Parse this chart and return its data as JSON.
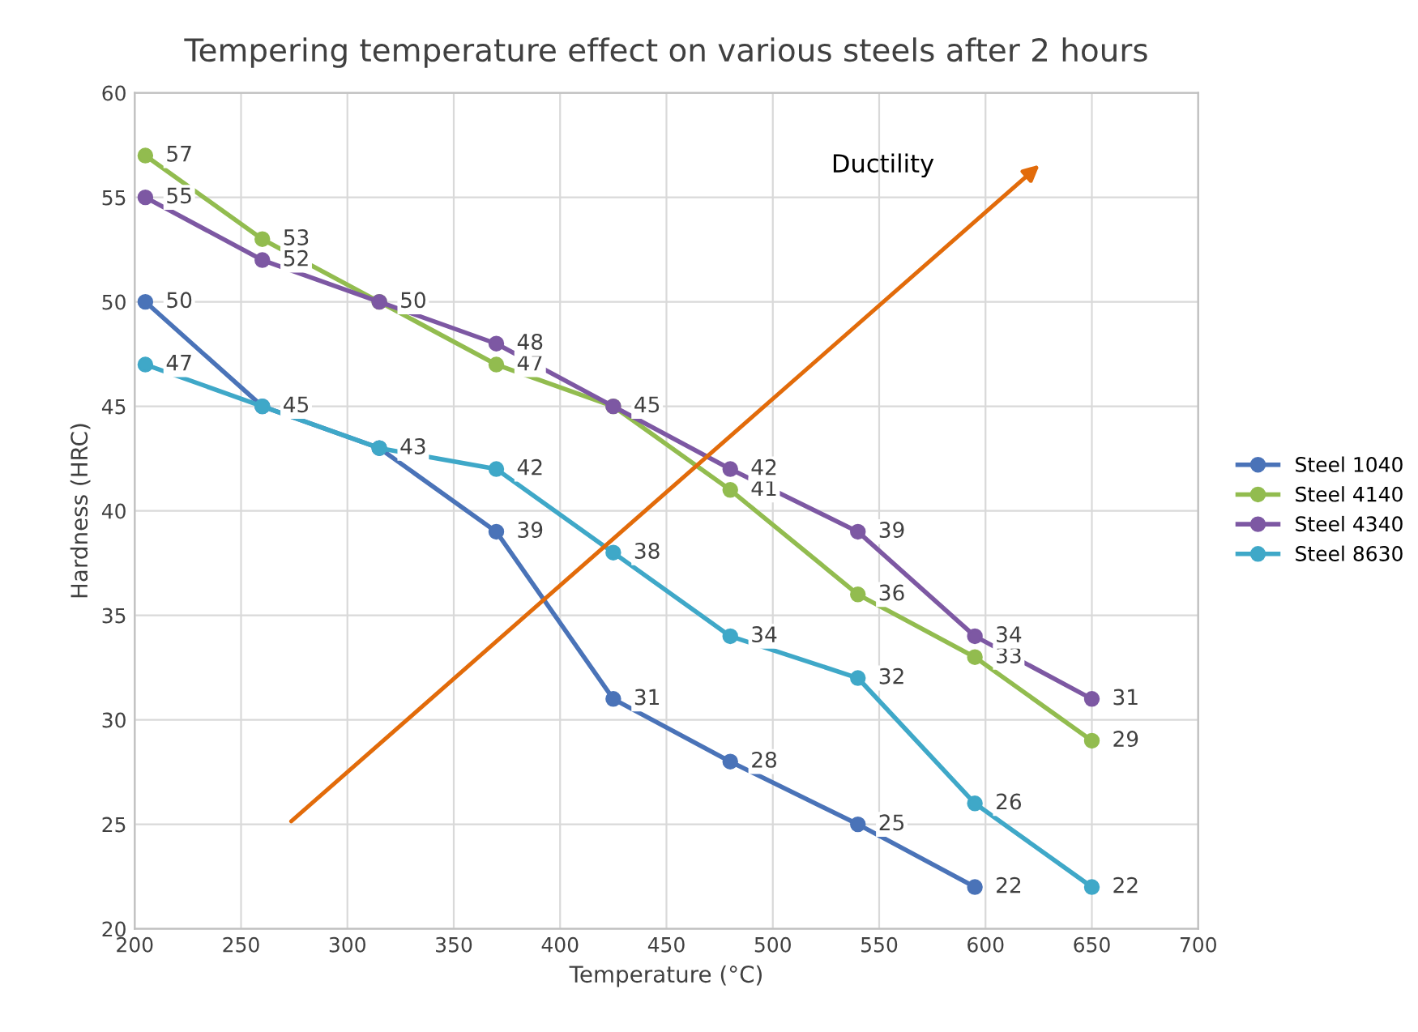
{
  "chart_data": {
    "type": "line",
    "title": "Tempering temperature effect on various steels after 2 hours",
    "xlabel": "Temperature (°C)",
    "ylabel": "Hardness (HRC)",
    "x": [
      205,
      260,
      315,
      370,
      425,
      480,
      540,
      595,
      650
    ],
    "series": [
      {
        "name": "Steel 1040",
        "color": "#4a73b8",
        "values": [
          50,
          45,
          43,
          39,
          31,
          28,
          25,
          22,
          null
        ]
      },
      {
        "name": "Steel 4140",
        "color": "#92bc4f",
        "values": [
          57,
          53,
          50,
          47,
          45,
          41,
          36,
          33,
          29
        ]
      },
      {
        "name": "Steel 4340",
        "color": "#7d58a3",
        "values": [
          55,
          52,
          50,
          48,
          45,
          42,
          39,
          34,
          31
        ],
        "value_labels": [
          "55",
          "52",
          null,
          "48",
          null,
          "42",
          "39",
          "34",
          "31"
        ]
      },
      {
        "name": "Steel 8630",
        "color": "#3fa8c8",
        "values": [
          47,
          45,
          43,
          42,
          38,
          34,
          32,
          26,
          22
        ],
        "value_labels": [
          "47",
          null,
          null,
          "42",
          "38",
          "34",
          "32",
          "26",
          "22"
        ]
      }
    ],
    "xlim": [
      200,
      700
    ],
    "xticks": [
      200,
      250,
      300,
      350,
      400,
      450,
      500,
      550,
      600,
      650,
      700
    ],
    "ylim": [
      20,
      60
    ],
    "yticks": [
      20,
      25,
      30,
      35,
      40,
      45,
      50,
      55,
      60
    ],
    "grid": true,
    "legend": "right",
    "marker": "circle",
    "line_style": "solid",
    "data_labels": true,
    "annotations": [
      "Ductility"
    ]
  }
}
